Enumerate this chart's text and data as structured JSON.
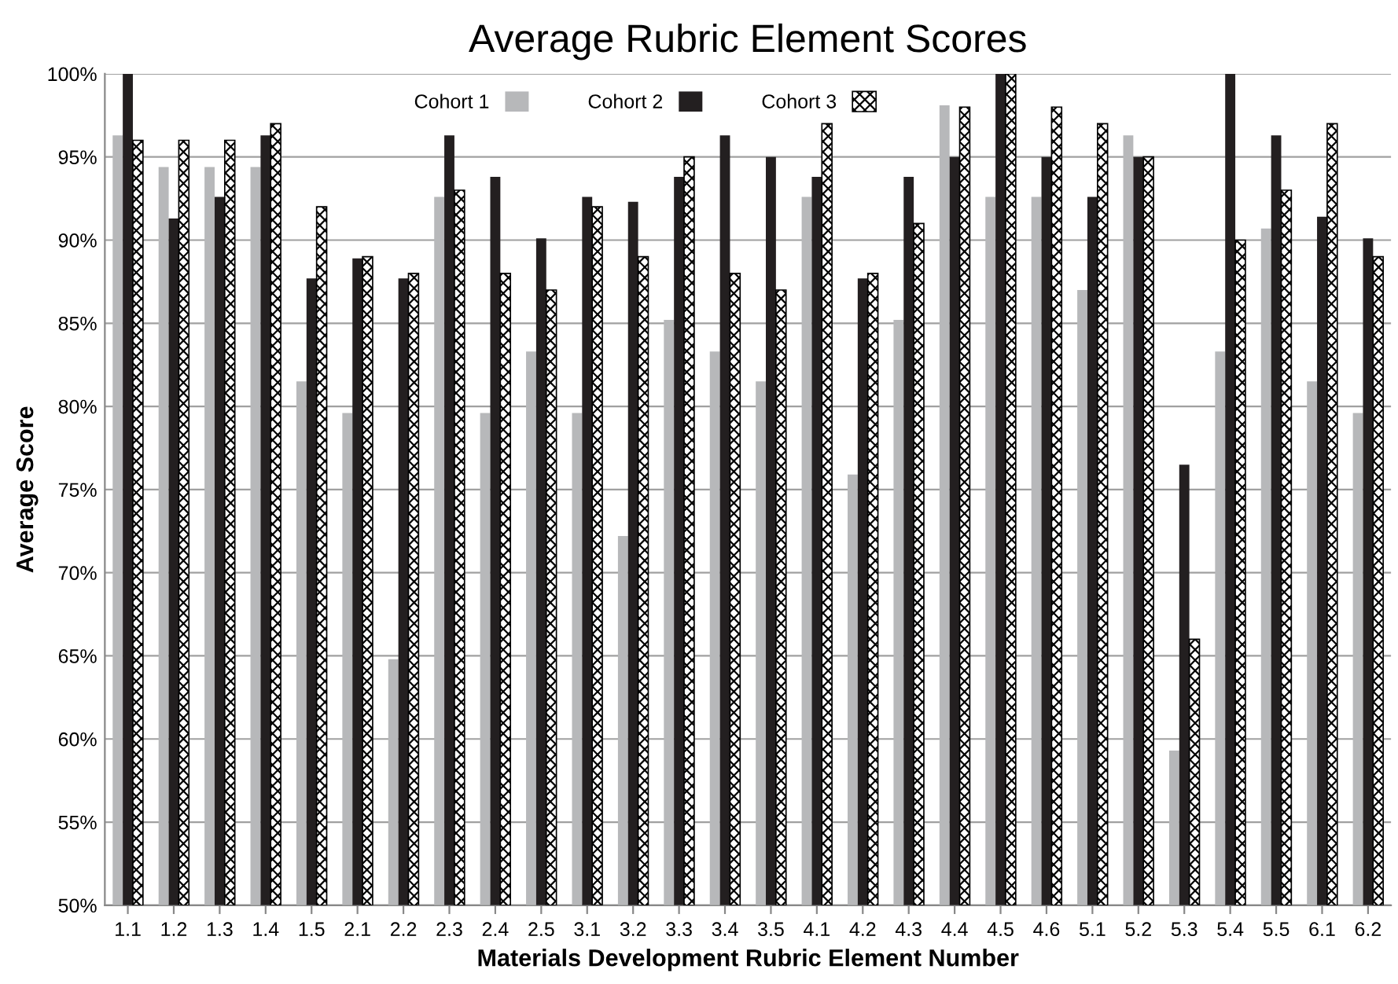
{
  "chart_data": {
    "type": "bar",
    "title": "Average Rubric Element Scores",
    "xlabel": "Materials Development Rubric Element Number",
    "ylabel": "Average Score",
    "categories": [
      "1.1",
      "1.2",
      "1.3",
      "1.4",
      "1.5",
      "2.1",
      "2.2",
      "2.3",
      "2.4",
      "2.5",
      "3.1",
      "3.2",
      "3.3",
      "3.4",
      "3.5",
      "4.1",
      "4.2",
      "4.3",
      "4.4",
      "4.5",
      "4.6",
      "5.1",
      "5.2",
      "5.3",
      "5.4",
      "5.5",
      "6.1",
      "6.2"
    ],
    "series": [
      {
        "name": "Cohort 1",
        "color": "#b7b8ba",
        "values": [
          96.3,
          94.4,
          94.4,
          94.4,
          81.5,
          79.6,
          64.8,
          92.6,
          79.6,
          83.3,
          79.6,
          72.2,
          85.2,
          83.3,
          81.5,
          92.6,
          75.9,
          85.2,
          98.1,
          92.6,
          92.6,
          87.0,
          96.3,
          59.3,
          83.3,
          90.7,
          81.5,
          79.6
        ]
      },
      {
        "name": "Cohort 2",
        "color": "#231f20",
        "values": [
          100,
          91.3,
          92.6,
          96.3,
          87.7,
          88.9,
          87.7,
          96.3,
          93.8,
          90.1,
          92.6,
          92.3,
          93.8,
          96.3,
          95.0,
          93.8,
          87.7,
          93.8,
          95.0,
          100,
          95.0,
          92.6,
          95.0,
          76.5,
          100,
          96.3,
          91.4,
          90.1
        ]
      },
      {
        "name": "Cohort 3",
        "color": "#000000",
        "values": [
          96,
          96,
          96,
          97,
          92,
          89,
          88,
          93,
          88,
          87,
          92,
          89,
          95,
          88,
          87,
          97,
          88,
          91,
          98,
          100,
          98,
          97,
          95,
          66,
          90,
          93,
          97,
          89
        ]
      }
    ],
    "ylim": [
      50,
      100
    ],
    "yticks": [
      {
        "value": 50,
        "label": "50%"
      },
      {
        "value": 55,
        "label": "55%"
      },
      {
        "value": 60,
        "label": "60%"
      },
      {
        "value": 65,
        "label": "65%"
      },
      {
        "value": 70,
        "label": "70%"
      },
      {
        "value": 75,
        "label": "75%"
      },
      {
        "value": 80,
        "label": "80%"
      },
      {
        "value": 85,
        "label": "85%"
      },
      {
        "value": 90,
        "label": "90%"
      },
      {
        "value": 95,
        "label": "95%"
      },
      {
        "value": 100,
        "label": "100%"
      }
    ],
    "grid": "y",
    "legend": "top"
  }
}
